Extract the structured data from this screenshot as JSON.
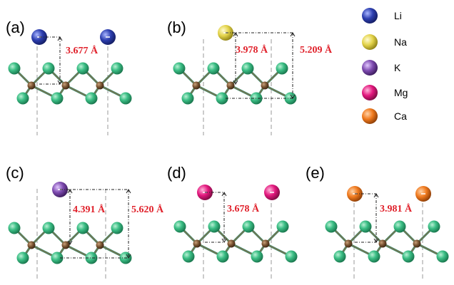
{
  "colors": {
    "green_atom": "#2ea873",
    "brown_atom": "#6b4a2e",
    "label_red": "#e0202a"
  },
  "panels": [
    {
      "label": "(a)",
      "ion": "Li",
      "distances": [
        "3.677 Å"
      ]
    },
    {
      "label": "(b)",
      "ion": "Na",
      "distances": [
        "3.978 Å",
        "5.209 Å"
      ]
    },
    {
      "label": "(c)",
      "ion": "K",
      "distances": [
        "4.391 Å",
        "5.620 Å"
      ]
    },
    {
      "label": "(d)",
      "ion": "Mg",
      "distances": [
        "3.678 Å"
      ]
    },
    {
      "label": "(e)",
      "ion": "Ca",
      "distances": [
        "3.981 Å"
      ]
    }
  ],
  "legend": [
    {
      "name": "Li",
      "color": "#2b3a9e"
    },
    {
      "name": "Na",
      "color": "#e6d84a"
    },
    {
      "name": "K",
      "color": "#7b4aa8"
    },
    {
      "name": "Mg",
      "color": "#e0187c"
    },
    {
      "name": "Ca",
      "color": "#f07a1e"
    }
  ]
}
